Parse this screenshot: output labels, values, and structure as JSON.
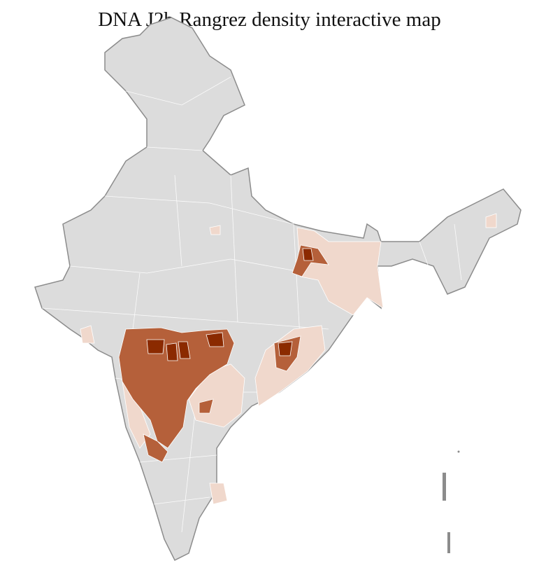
{
  "title": "DNA J2b Rangrez density interactive map",
  "colors": {
    "no_data": "#dcdcdc",
    "low": "#f0d8cc",
    "medium": "#b5603a",
    "high": "#8b2a00",
    "border": "#8c8c8c"
  }
}
